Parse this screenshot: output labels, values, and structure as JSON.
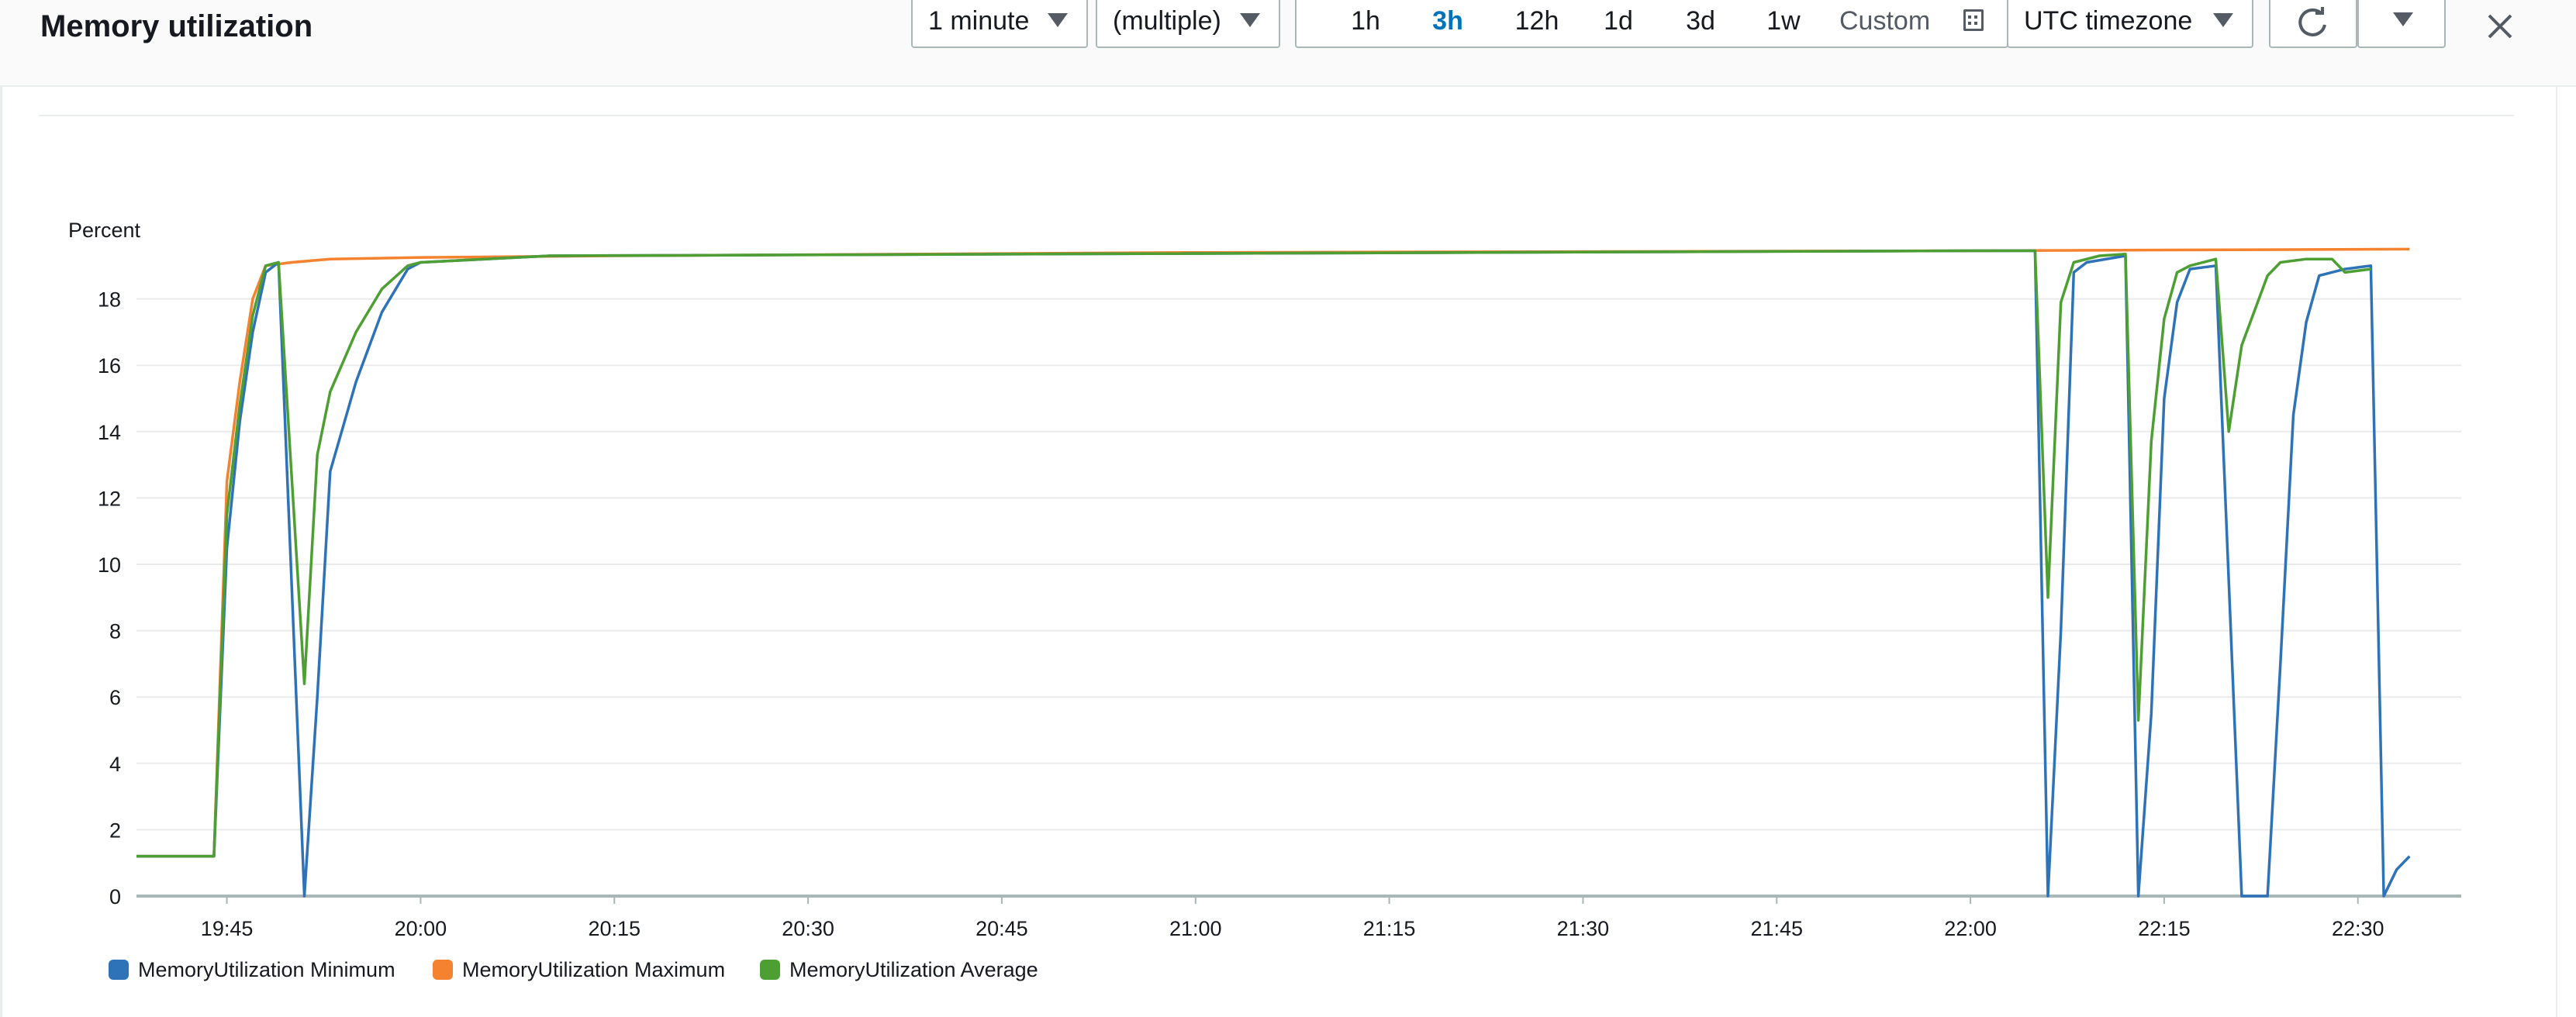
{
  "widget": {
    "title": "Memory utilization",
    "period": "1 minute",
    "statistic": "(multiple)",
    "ranges": [
      "1h",
      "3h",
      "12h",
      "1d",
      "3d",
      "1w"
    ],
    "active_range": "3h",
    "custom_label": "Custom",
    "timezone": "UTC timezone"
  },
  "icons": {
    "calendar": "calendar-icon",
    "refresh": "refresh-icon",
    "dropdown": "chevron-down-icon",
    "close": "close-icon"
  },
  "chart_data": {
    "type": "line",
    "ylabel": "Percent",
    "ylim": [
      0,
      20
    ],
    "yticks": [
      0,
      2,
      4,
      6,
      8,
      10,
      12,
      14,
      16,
      18
    ],
    "xlim": [
      "19:38",
      "22:38"
    ],
    "xticks": [
      "19:45",
      "20:00",
      "20:15",
      "20:30",
      "20:45",
      "21:00",
      "21:15",
      "21:30",
      "21:45",
      "22:00",
      "22:15",
      "22:30"
    ],
    "grid": true,
    "legend_position": "bottom-left",
    "series": [
      {
        "name": "MemoryUtilization Minimum",
        "color": "#2e73b8",
        "points": [
          [
            "19:38",
            1.2
          ],
          [
            "19:42",
            1.2
          ],
          [
            "19:44",
            1.2
          ],
          [
            "19:45",
            10.5
          ],
          [
            "19:46",
            14.3
          ],
          [
            "19:47",
            17.0
          ],
          [
            "19:48",
            18.8
          ],
          [
            "19:49",
            19.1
          ],
          [
            "19:51",
            0
          ],
          [
            "19:52",
            6.0
          ],
          [
            "19:53",
            12.8
          ],
          [
            "19:55",
            15.5
          ],
          [
            "19:57",
            17.6
          ],
          [
            "19:59",
            18.9
          ],
          [
            "20:00",
            19.1
          ],
          [
            "20:10",
            19.3
          ],
          [
            "22:00",
            19.45
          ],
          [
            "22:05",
            19.45
          ],
          [
            "22:06",
            0
          ],
          [
            "22:07",
            8.0
          ],
          [
            "22:08",
            18.8
          ],
          [
            "22:09",
            19.1
          ],
          [
            "22:12",
            19.3
          ],
          [
            "22:13",
            0
          ],
          [
            "22:14",
            5.5
          ],
          [
            "22:15",
            15.0
          ],
          [
            "22:16",
            17.9
          ],
          [
            "22:17",
            18.9
          ],
          [
            "22:19",
            19.0
          ],
          [
            "22:21",
            0
          ],
          [
            "22:23",
            0
          ],
          [
            "22:24",
            7.0
          ],
          [
            "22:25",
            14.5
          ],
          [
            "22:26",
            17.3
          ],
          [
            "22:27",
            18.7
          ],
          [
            "22:29",
            18.9
          ],
          [
            "22:31",
            19.0
          ],
          [
            "22:32",
            0
          ],
          [
            "22:33",
            0.8
          ],
          [
            "22:34",
            1.2
          ]
        ]
      },
      {
        "name": "MemoryUtilization Maximum",
        "color": "#f5822e",
        "points": [
          [
            "19:38",
            1.2
          ],
          [
            "19:42",
            1.2
          ],
          [
            "19:44",
            1.2
          ],
          [
            "19:45",
            12.5
          ],
          [
            "19:46",
            15.5
          ],
          [
            "19:47",
            18.0
          ],
          [
            "19:48",
            19.0
          ],
          [
            "19:50",
            19.1
          ],
          [
            "19:53",
            19.2
          ],
          [
            "20:00",
            19.25
          ],
          [
            "20:15",
            19.3
          ],
          [
            "21:00",
            19.4
          ],
          [
            "22:00",
            19.45
          ],
          [
            "22:34",
            19.5
          ]
        ]
      },
      {
        "name": "MemoryUtilization Average",
        "color": "#4e9f33",
        "points": [
          [
            "19:38",
            1.2
          ],
          [
            "19:42",
            1.2
          ],
          [
            "19:44",
            1.2
          ],
          [
            "19:45",
            11.5
          ],
          [
            "19:46",
            14.8
          ],
          [
            "19:47",
            17.5
          ],
          [
            "19:48",
            19.0
          ],
          [
            "19:49",
            19.1
          ],
          [
            "19:51",
            6.4
          ],
          [
            "19:52",
            13.3
          ],
          [
            "19:53",
            15.2
          ],
          [
            "19:55",
            17.0
          ],
          [
            "19:57",
            18.3
          ],
          [
            "19:59",
            19.0
          ],
          [
            "20:00",
            19.1
          ],
          [
            "20:10",
            19.3
          ],
          [
            "22:00",
            19.45
          ],
          [
            "22:05",
            19.45
          ],
          [
            "22:06",
            9.0
          ],
          [
            "22:07",
            17.9
          ],
          [
            "22:08",
            19.1
          ],
          [
            "22:10",
            19.3
          ],
          [
            "22:12",
            19.35
          ],
          [
            "22:13",
            5.3
          ],
          [
            "22:14",
            13.7
          ],
          [
            "22:15",
            17.4
          ],
          [
            "22:16",
            18.8
          ],
          [
            "22:17",
            19.0
          ],
          [
            "22:19",
            19.2
          ],
          [
            "22:20",
            14.0
          ],
          [
            "22:21",
            16.6
          ],
          [
            "22:23",
            18.7
          ],
          [
            "22:24",
            19.1
          ],
          [
            "22:26",
            19.2
          ],
          [
            "22:28",
            19.2
          ],
          [
            "22:29",
            18.8
          ],
          [
            "22:31",
            18.9
          ]
        ]
      }
    ]
  }
}
